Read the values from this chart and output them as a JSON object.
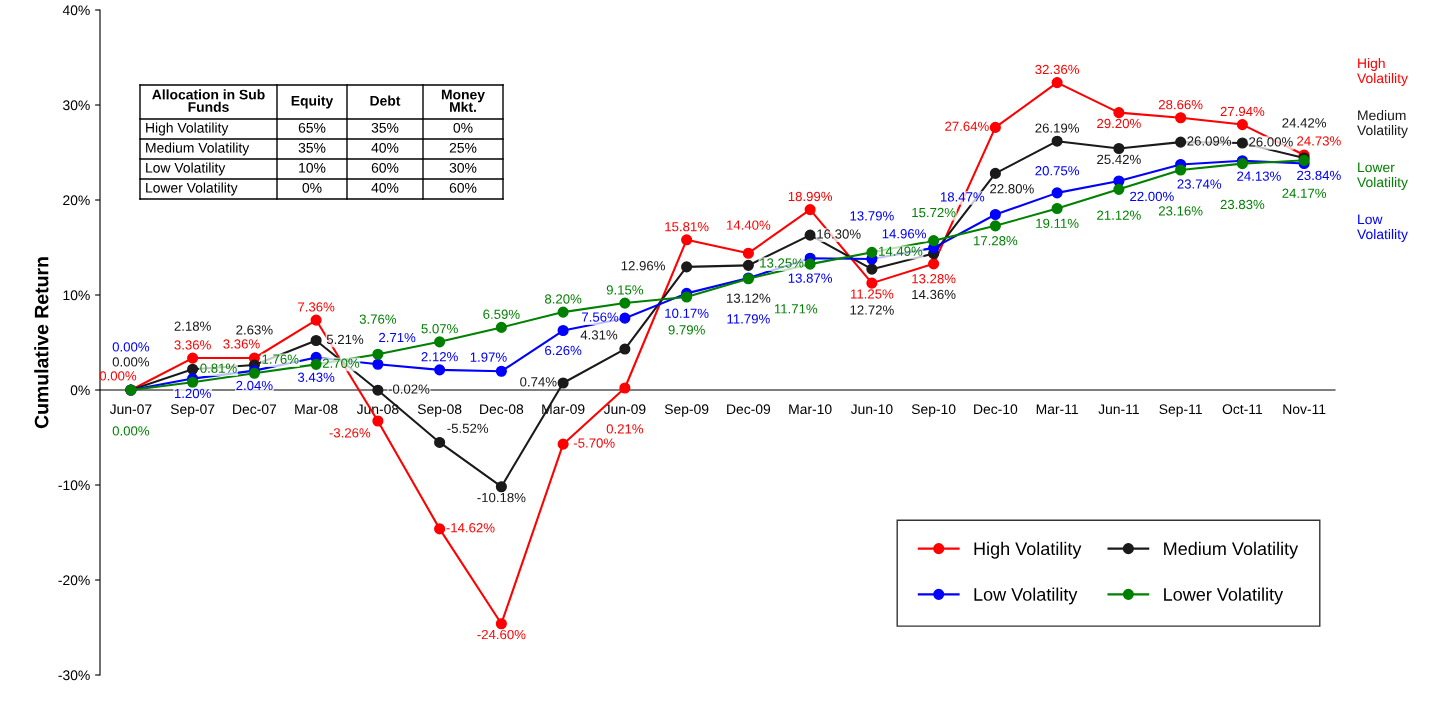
{
  "chart_data": {
    "type": "line",
    "ylabel": "Cumulative Return",
    "categories": [
      "Jun-07",
      "Sep-07",
      "Dec-07",
      "Mar-08",
      "Jun-08",
      "Sep-08",
      "Dec-08",
      "Mar-09",
      "Jun-09",
      "Sep-09",
      "Dec-09",
      "Mar-10",
      "Jun-10",
      "Sep-10",
      "Dec-10",
      "Mar-11",
      "Jun-11",
      "Sep-11",
      "Oct-11",
      "Nov-11"
    ],
    "series": [
      {
        "name": "High Volatility",
        "color": "#ff0000",
        "values": [
          0.0,
          3.36,
          3.36,
          7.36,
          -3.26,
          -14.62,
          -24.6,
          -5.7,
          0.21,
          15.81,
          14.4,
          18.99,
          11.25,
          13.28,
          27.64,
          32.36,
          29.2,
          28.66,
          27.94,
          24.73
        ],
        "value_labels": [
          "0.00%",
          "3.36%",
          "3.36%",
          "7.36%",
          "-3.26%",
          "-14.62%",
          "-24.60%",
          "-5.70%",
          "0.21%",
          "15.81%",
          "14.40%",
          "18.99%",
          "11.25%",
          "13.28%",
          "27.64%",
          "32.36%",
          "29.20%",
          "28.66%",
          "27.94%",
          "24.73%"
        ]
      },
      {
        "name": "Medium Volatility",
        "color": "#1a1a1a",
        "values": [
          0.0,
          2.18,
          2.63,
          5.21,
          -0.02,
          -5.52,
          -10.18,
          0.74,
          4.31,
          12.96,
          13.12,
          16.3,
          12.72,
          14.36,
          22.8,
          26.19,
          25.42,
          26.09,
          26.0,
          24.42
        ],
        "value_labels": [
          "0.00%",
          "2.18%",
          "2.63%",
          "5.21%",
          "-0.02%",
          "-5.52%",
          "-10.18%",
          "0.74%",
          "4.31%",
          "12.96%",
          "13.12%",
          "16.30%",
          "12.72%",
          "14.36%",
          "22.80%",
          "26.19%",
          "25.42%",
          "26.09%",
          "26.00%",
          "24.42%"
        ]
      },
      {
        "name": "Low Volatility",
        "color": "#0000ff",
        "values": [
          0.0,
          1.2,
          2.04,
          3.43,
          2.71,
          2.12,
          1.97,
          6.26,
          7.56,
          10.17,
          11.79,
          13.87,
          13.79,
          14.96,
          18.47,
          20.75,
          22.0,
          23.74,
          24.13,
          23.84
        ],
        "value_labels": [
          "0.00%",
          "1.20%",
          "2.04%",
          "3.43%",
          "2.71%",
          "2.12%",
          "1.97%",
          "6.26%",
          "7.56%",
          "10.17%",
          "11.79%",
          "13.87%",
          "13.79%",
          "14.96%",
          "18.47%",
          "20.75%",
          "22.00%",
          "23.74%",
          "24.13%",
          "23.84%"
        ]
      },
      {
        "name": "Lower Volatility",
        "color": "#008000",
        "values": [
          0.0,
          0.81,
          1.76,
          2.7,
          3.76,
          5.07,
          6.59,
          8.2,
          9.15,
          9.79,
          11.71,
          13.25,
          14.49,
          15.72,
          17.28,
          19.11,
          21.12,
          23.16,
          23.83,
          24.17
        ],
        "value_labels": [
          "0.00%",
          "0.81%",
          "1.76%",
          "2.70%",
          "3.76%",
          "5.07%",
          "6.59%",
          "8.20%",
          "9.15%",
          "9.79%",
          "11.71%",
          "13.25%",
          "14.49%",
          "15.72%",
          "17.28%",
          "19.11%",
          "21.12%",
          "23.16%",
          "23.83%",
          "24.17%"
        ]
      }
    ],
    "ylim": [
      -30,
      40
    ],
    "yticks": [
      {
        "value": -30,
        "label": "-30%"
      },
      {
        "value": -20,
        "label": "-20%"
      },
      {
        "value": -10,
        "label": "-10%"
      },
      {
        "value": 0,
        "label": "0%"
      },
      {
        "value": 10,
        "label": "10%"
      },
      {
        "value": 20,
        "label": "20%"
      },
      {
        "value": 30,
        "label": "30%"
      },
      {
        "value": 40,
        "label": "40%"
      }
    ],
    "marker": "circle",
    "line_style": "solid",
    "grid": false,
    "legend": "bottom right",
    "annotations": [
      "Allocation in Sub\nFunds",
      "Equity",
      "Debt",
      "Money\nMkt.",
      "High Volatility",
      "65%",
      "35%",
      "0%",
      "Medium Volatility",
      "35%",
      "40%",
      "25%",
      "Low Volatility",
      "10%",
      "60%",
      "30%",
      "Lower Volatility",
      "0%",
      "40%",
      "60%"
    ]
  }
}
